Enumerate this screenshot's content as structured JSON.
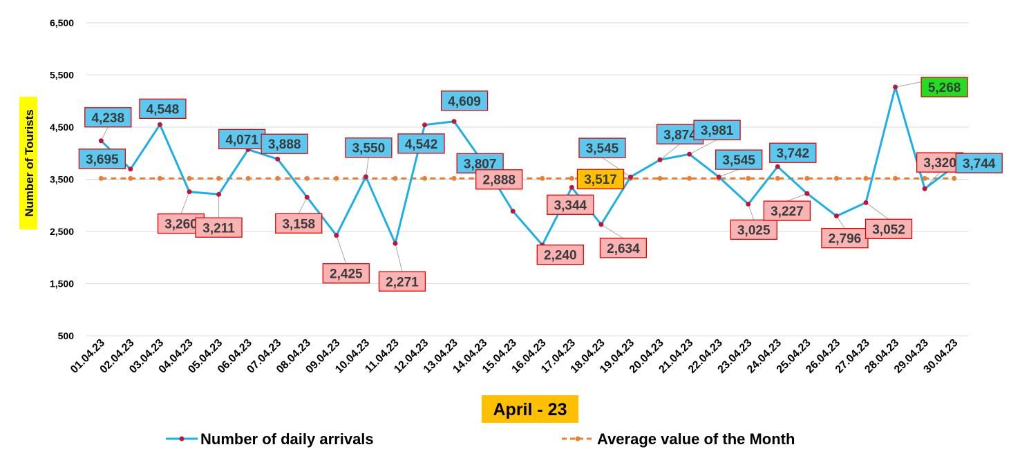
{
  "chart_data": {
    "type": "line",
    "xlabel": "April - 23",
    "ylabel": "Number of Tourists",
    "ylim": [
      500,
      6500
    ],
    "yticks": [
      "6,500",
      "5,500",
      "4,500",
      "3,500",
      "2,500",
      "1,500",
      "500"
    ],
    "categories": [
      "01.04.23",
      "02.04.23",
      "03.04.23",
      "04.04.23",
      "05.04.23",
      "06.04.23",
      "07.04.23",
      "08.04.23",
      "09.04.23",
      "10.04.23",
      "11.04.23",
      "12.04.23",
      "13.04.23",
      "14.04.23",
      "15.04.23",
      "16.04.23",
      "17.04.23",
      "18.04.23",
      "19.04.23",
      "20.04.23",
      "21.04.23",
      "22.04.23",
      "23.04.23",
      "24.04.23",
      "25.04.23",
      "26.04.23",
      "27.04.23",
      "28.04.23",
      "29.04.23",
      "30.04.23"
    ],
    "series": [
      {
        "name": "Number of daily arrivals",
        "color": "#1aafe6",
        "marker_color": "#c0143c",
        "values": [
          4238,
          3695,
          4548,
          3260,
          3211,
          4071,
          3888,
          3158,
          2425,
          3550,
          2271,
          4542,
          4609,
          3807,
          2888,
          2240,
          3344,
          2634,
          3545,
          3874,
          3981,
          3545,
          3025,
          3742,
          3227,
          2796,
          3052,
          5268,
          3320,
          3744
        ],
        "labels": [
          "4,238",
          "3,695",
          "4,548",
          "3,260",
          "3,211",
          "4,071",
          "3,888",
          "3,158",
          "2,425",
          "3,550",
          "2,271",
          "4,542",
          "4,609",
          "3,807",
          "2,888",
          "2,240",
          "3,344",
          "2,634",
          "3,545",
          "3,874",
          "3,981",
          "3,545",
          "3,025",
          "3,742",
          "3,227",
          "2,796",
          "3,052",
          "5,268",
          "3,320",
          "3,744"
        ]
      },
      {
        "name": "Average value of the Month",
        "color": "#ed7d31",
        "style": "dashed",
        "value": 3517,
        "label": "3,517"
      }
    ],
    "label_colors": {
      "above_average": "#5bc8f0",
      "below_average": "#f9b3b3",
      "maximum": "#22dd22",
      "average": "#ffc000",
      "title_highlight": "#ffff00",
      "xlabel_highlight": "#ffc000",
      "border": "#e00000"
    },
    "legend": "bottom",
    "grid": true
  }
}
